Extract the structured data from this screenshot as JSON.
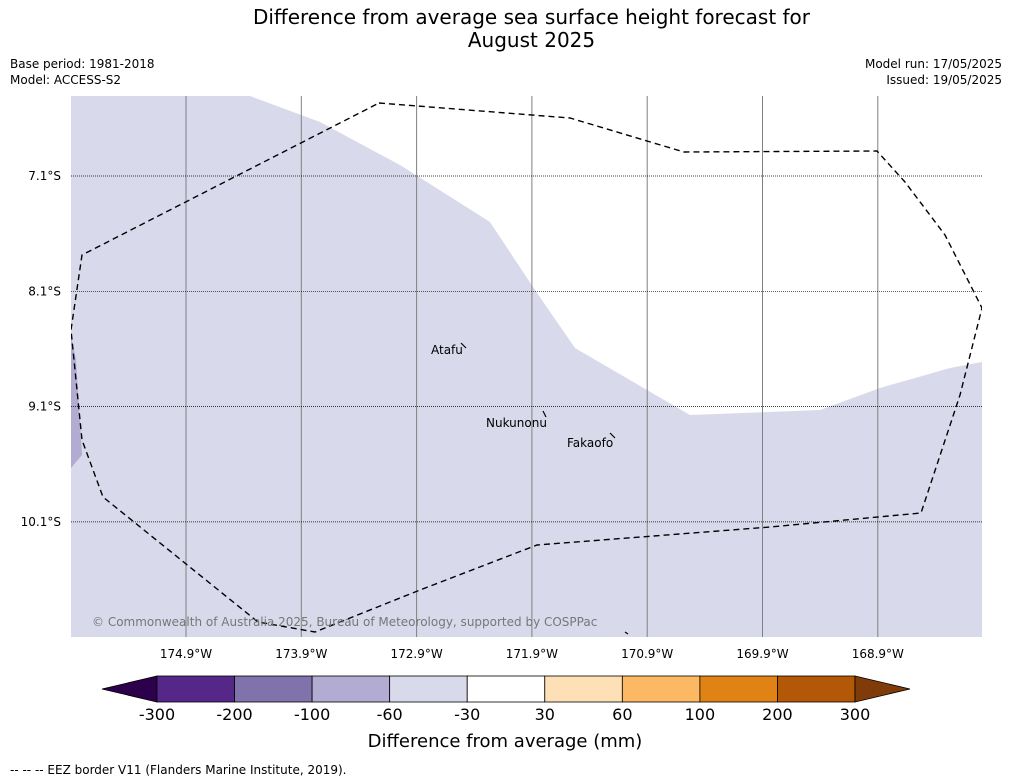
{
  "title_line1": "Difference from average sea surface height forecast for",
  "title_line2": "August 2025",
  "base_period": "Base period: 1981-2018",
  "model": "Model: ACCESS-S2",
  "model_run": "Model run: 17/05/2025",
  "issued": "Issued: 19/05/2025",
  "lat_ticks": [
    "7.1°S",
    "8.1°S",
    "9.1°S",
    "10.1°S"
  ],
  "lon_ticks": [
    "174.9°W",
    "173.9°W",
    "172.9°W",
    "171.9°W",
    "170.9°W",
    "169.9°W",
    "168.9°W"
  ],
  "places": [
    {
      "name": "Atafu"
    },
    {
      "name": "Nukunonu"
    },
    {
      "name": "Fakaofo"
    }
  ],
  "copyright": "© Commonwealth of Australia 2025, Bureau of Meteorology, supported by COSPPac",
  "colorbar": {
    "title": "Difference from average (mm)",
    "labels": [
      "-300",
      "-200",
      "-100",
      "-60",
      "-30",
      "30",
      "60",
      "100",
      "200",
      "300"
    ],
    "colors": [
      "#2d004b",
      "#542788",
      "#8073ac",
      "#b2abd2",
      "#d8daeb",
      "#ffffff",
      "#fee0b6",
      "#fdb863",
      "#e08214",
      "#b35806",
      "#7f3b08"
    ]
  },
  "footnote": "--  --  -- EEZ border V11 (Flanders Marine Institute, 2019).",
  "colors": {
    "field_light": "#d8daeb",
    "field_mid": "#b2abd2",
    "grid": "#808080",
    "eez": "#000000"
  }
}
